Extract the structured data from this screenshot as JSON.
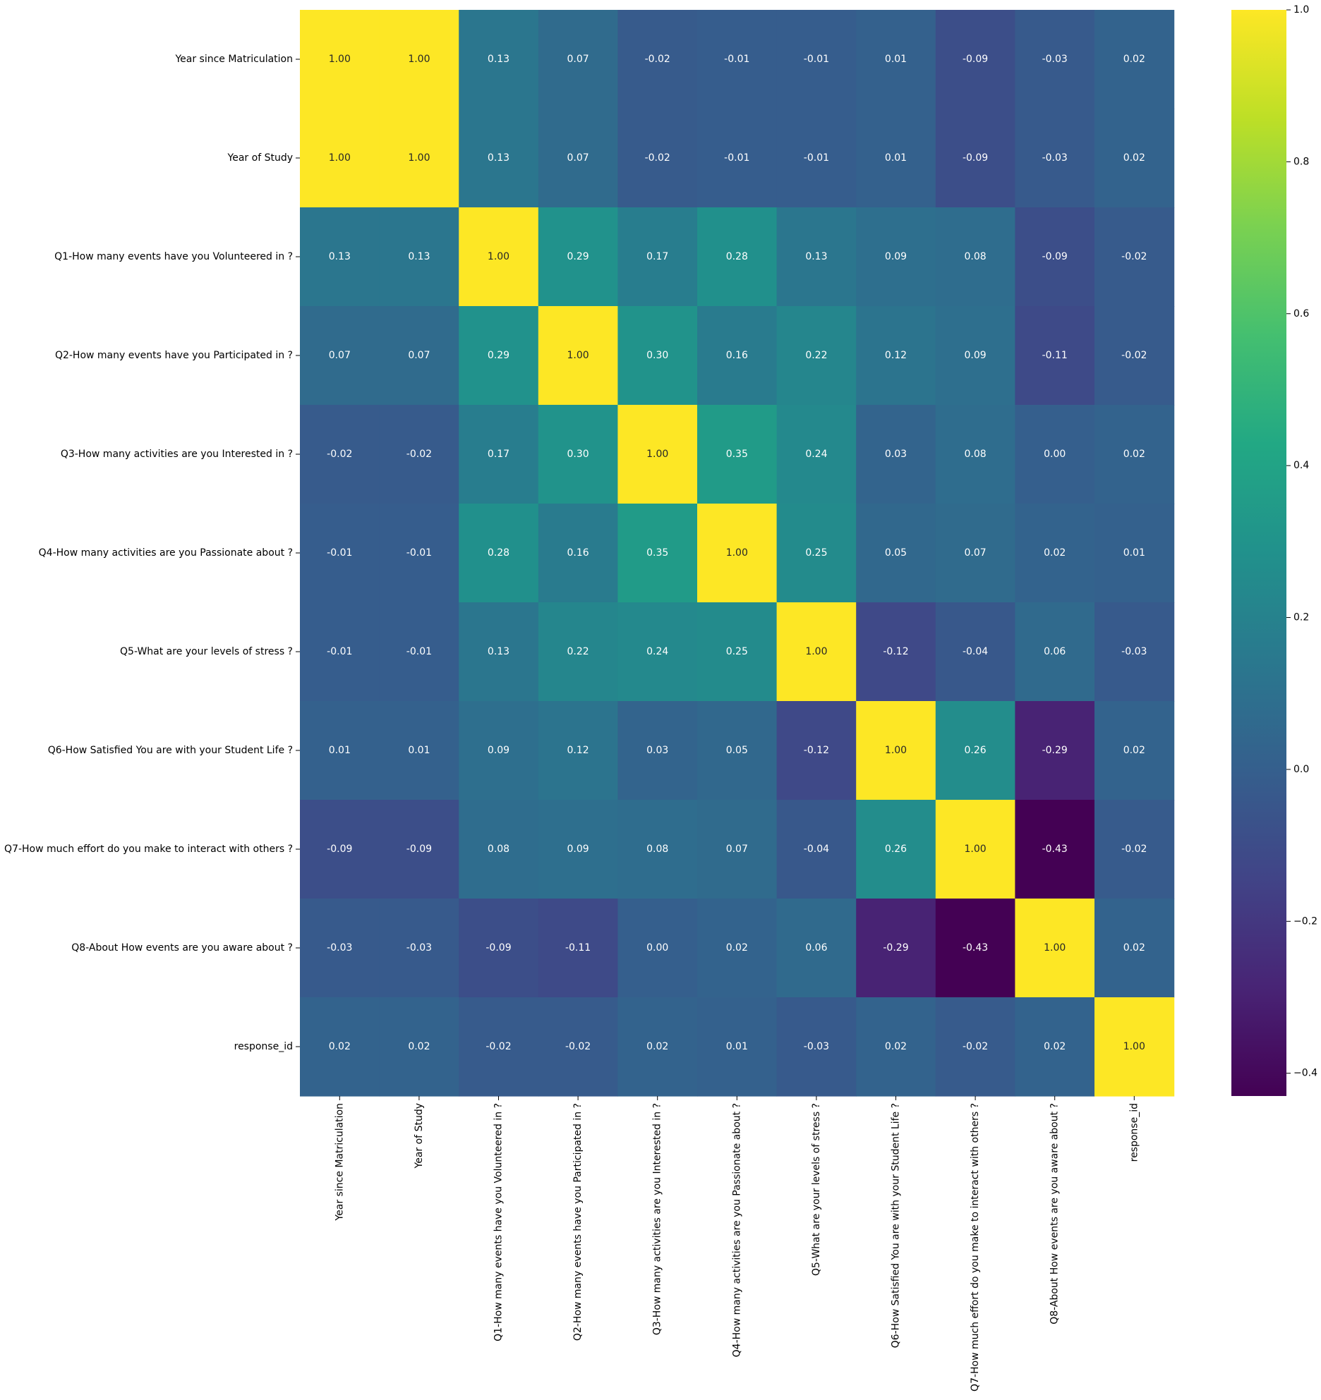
{
  "chart_data": {
    "type": "heatmap",
    "title": "",
    "xlabel": "",
    "ylabel": "",
    "colormap": "viridis",
    "vmin": -0.43,
    "vmax": 1.0,
    "value_format": "2 decimals",
    "labels": [
      "Year since Matriculation",
      "Year of Study",
      "Q1-How many events have you Volunteered in ?",
      "Q2-How many events have you Participated in ?",
      "Q3-How many activities are you Interested in ?",
      "Q4-How many activities are you Passionate about ?",
      "Q5-What are your levels of stress ?",
      "Q6-How Satisfied You are with your Student Life ?",
      "Q7-How much effort do you make to interact with others ?",
      "Q8-About How events are you aware about ?",
      "response_id"
    ],
    "matrix": [
      [
        1.0,
        1.0,
        0.13,
        0.07,
        -0.02,
        -0.01,
        -0.01,
        0.01,
        -0.09,
        -0.03,
        0.02
      ],
      [
        1.0,
        1.0,
        0.13,
        0.07,
        -0.02,
        -0.01,
        -0.01,
        0.01,
        -0.09,
        -0.03,
        0.02
      ],
      [
        0.13,
        0.13,
        1.0,
        0.29,
        0.17,
        0.28,
        0.13,
        0.09,
        0.08,
        -0.09,
        -0.02
      ],
      [
        0.07,
        0.07,
        0.29,
        1.0,
        0.3,
        0.16,
        0.22,
        0.12,
        0.09,
        -0.11,
        -0.02
      ],
      [
        -0.02,
        -0.02,
        0.17,
        0.3,
        1.0,
        0.35,
        0.24,
        0.03,
        0.08,
        -0.0,
        0.02
      ],
      [
        -0.01,
        -0.01,
        0.28,
        0.16,
        0.35,
        1.0,
        0.25,
        0.05,
        0.07,
        0.02,
        0.01
      ],
      [
        -0.01,
        -0.01,
        0.13,
        0.22,
        0.24,
        0.25,
        1.0,
        -0.12,
        -0.04,
        0.06,
        -0.03
      ],
      [
        0.01,
        0.01,
        0.09,
        0.12,
        0.03,
        0.05,
        -0.12,
        1.0,
        0.26,
        -0.29,
        0.02
      ],
      [
        -0.09,
        -0.09,
        0.08,
        0.09,
        0.08,
        0.07,
        -0.04,
        0.26,
        1.0,
        -0.43,
        -0.02
      ],
      [
        -0.03,
        -0.03,
        -0.09,
        -0.11,
        -0.0,
        0.02,
        0.06,
        -0.29,
        -0.43,
        1.0,
        0.02
      ],
      [
        0.02,
        0.02,
        -0.02,
        -0.02,
        0.02,
        0.01,
        -0.03,
        0.02,
        -0.02,
        0.02,
        1.0
      ]
    ],
    "colorbar": {
      "ticks": [
        -0.4,
        -0.2,
        0.0,
        0.2,
        0.4,
        0.6,
        0.8,
        1.0
      ],
      "tick_labels": [
        "−0.4",
        "−0.2",
        "0.0",
        "0.2",
        "0.4",
        "0.6",
        "0.8",
        "1.0"
      ],
      "position": "right"
    }
  }
}
